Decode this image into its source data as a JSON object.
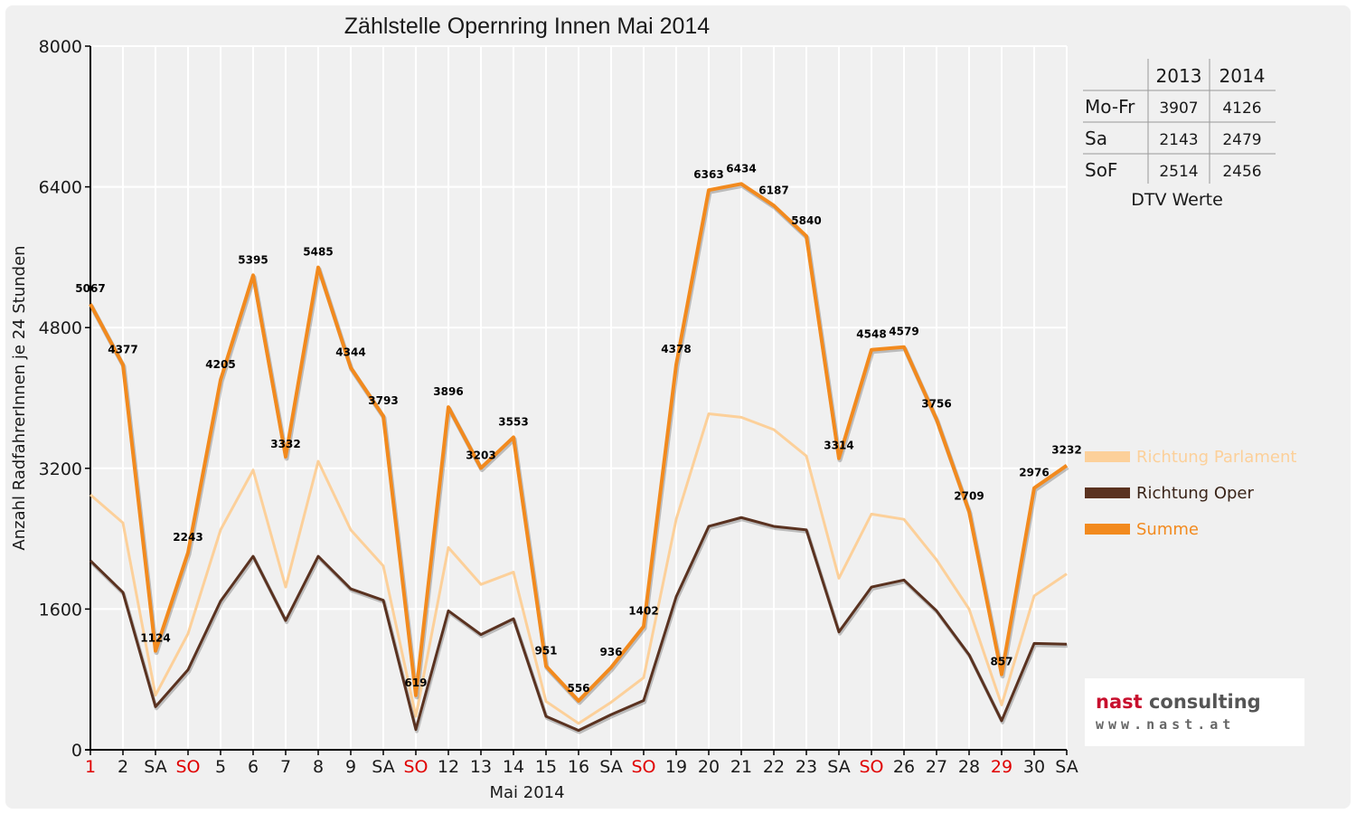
{
  "colors": {
    "parlament": "#fcd09a",
    "oper": "#5a3220",
    "summe": "#f28a1e",
    "weekend_red": "#e00000",
    "grid": "#ffffff",
    "text": "#1a1a1a"
  },
  "chart_data": {
    "type": "line",
    "title": "Zählstelle Opernring Innen Mai 2014",
    "xlabel": "Mai 2014",
    "ylabel": "Anzahl RadfahrerInnen je 24 Stunden",
    "ylim": [
      0,
      8000
    ],
    "yticks": [
      0,
      1600,
      3200,
      4800,
      6400,
      8000
    ],
    "grid": true,
    "legend_position": "right",
    "categories": [
      "1",
      "2",
      "SA",
      "SO",
      "5",
      "6",
      "7",
      "8",
      "9",
      "SA",
      "SO",
      "12",
      "13",
      "14",
      "15",
      "16",
      "SA",
      "SO",
      "19",
      "20",
      "21",
      "22",
      "23",
      "SA",
      "SO",
      "26",
      "27",
      "28",
      "29",
      "30",
      "SA"
    ],
    "red_categories": [
      0,
      3,
      10,
      17,
      24,
      28
    ],
    "series": [
      {
        "name": "Richtung Parlament",
        "color": "#fcd09a",
        "values": [
          2900,
          2580,
          620,
          1320,
          2500,
          3180,
          1850,
          3280,
          2500,
          2090,
          380,
          2300,
          1880,
          2020,
          550,
          300,
          540,
          820,
          2620,
          3820,
          3780,
          3640,
          3340,
          1950,
          2680,
          2620,
          2160,
          1600,
          510,
          1750,
          2000
        ]
      },
      {
        "name": "Richtung Oper",
        "color": "#5a3220",
        "values": [
          2150,
          1790,
          490,
          910,
          1690,
          2200,
          1470,
          2200,
          1830,
          1700,
          230,
          1580,
          1310,
          1490,
          380,
          220,
          400,
          560,
          1740,
          2540,
          2640,
          2540,
          2500,
          1340,
          1850,
          1930,
          1580,
          1080,
          330,
          1210,
          1200
        ]
      },
      {
        "name": "Summe",
        "color": "#f28a1e",
        "values": [
          5067,
          4377,
          1124,
          2243,
          4205,
          5395,
          3332,
          5485,
          4344,
          3793,
          619,
          3896,
          3203,
          3553,
          951,
          556,
          936,
          1402,
          4378,
          6363,
          6434,
          6187,
          5840,
          3314,
          4548,
          4579,
          3756,
          2709,
          857,
          2976,
          3232
        ],
        "labels": [
          "5067",
          "4377",
          "1124",
          "2243",
          "4205",
          "5395",
          "3332",
          "5485",
          "4344",
          "3793",
          "619",
          "3896",
          "3203",
          "3553",
          "951",
          "556",
          "936",
          "1402",
          "4378",
          "6363",
          "6434",
          "6187",
          "5840",
          "3314",
          "4548",
          "4579",
          "3756",
          "2709",
          "857",
          "2976",
          "3232"
        ]
      }
    ]
  },
  "dtv_table": {
    "headers": [
      "",
      "2013",
      "2014"
    ],
    "rows": [
      [
        "Mo-Fr",
        "3907",
        "4126"
      ],
      [
        "Sa",
        "2143",
        "2479"
      ],
      [
        "SoF",
        "2514",
        "2456"
      ]
    ],
    "caption": "DTV Werte"
  },
  "logo": {
    "name_part1": "nast",
    "name_part2": " consulting",
    "url": "www.nast.at"
  }
}
